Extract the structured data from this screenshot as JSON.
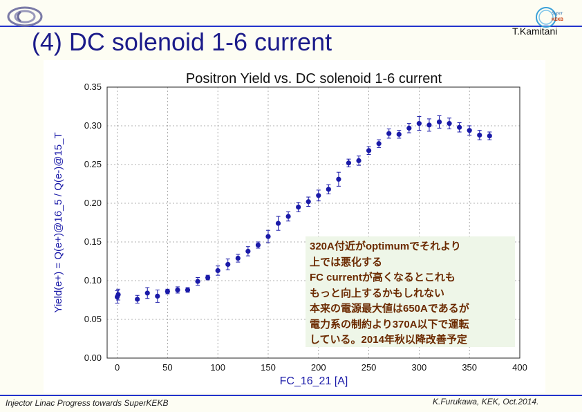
{
  "slide": {
    "title": "(4) DC solenoid 1-6 current",
    "author": "T.Kamitani",
    "footer_left": "Injector Linac Progress towards SuperKEKB",
    "footer_right": "K.Furukawa, KEK, Oct.2014.",
    "logo_right_text": [
      "Super",
      "KEKB"
    ]
  },
  "annotation": {
    "lines": [
      "320A付近がoptimumでそれより",
      "上では悪化する",
      "FC currentが高くなるとこれも",
      "もっと向上するかもしれない",
      "本来の電源最大値は650Aであるが",
      "電力系の制約より370A以下で運転",
      "している。2014年秋以降改善予定"
    ]
  },
  "chart_data": {
    "type": "scatter",
    "title": "Positron Yield vs. DC solenoid 1-6 current",
    "xlabel": "FC_16_21 [A]",
    "ylabel": "Yield(e+) = Q(e+)@16_5 / Q(e-)@15_T",
    "xlim": [
      -10,
      400
    ],
    "ylim": [
      0.0,
      0.35
    ],
    "xticks": [
      "0",
      "50",
      "100",
      "150",
      "200",
      "250",
      "300",
      "350",
      "400"
    ],
    "yticks": [
      "0.00",
      "0.05",
      "0.10",
      "0.15",
      "0.20",
      "0.25",
      "0.30",
      "0.35"
    ],
    "grid": true,
    "marker_color": "#1a1aa8",
    "series": [
      {
        "points": [
          {
            "x": 0,
            "y": 0.079,
            "err": 0.008
          },
          {
            "x": 1,
            "y": 0.082,
            "err": 0.007
          },
          {
            "x": 20,
            "y": 0.076,
            "err": 0.005
          },
          {
            "x": 30,
            "y": 0.084,
            "err": 0.007
          },
          {
            "x": 40,
            "y": 0.08,
            "err": 0.008
          },
          {
            "x": 50,
            "y": 0.086,
            "err": 0.003
          },
          {
            "x": 60,
            "y": 0.088,
            "err": 0.004
          },
          {
            "x": 70,
            "y": 0.088,
            "err": 0.003
          },
          {
            "x": 80,
            "y": 0.099,
            "err": 0.005
          },
          {
            "x": 90,
            "y": 0.104,
            "err": 0.003
          },
          {
            "x": 100,
            "y": 0.113,
            "err": 0.006
          },
          {
            "x": 110,
            "y": 0.121,
            "err": 0.007
          },
          {
            "x": 120,
            "y": 0.129,
            "err": 0.005
          },
          {
            "x": 130,
            "y": 0.138,
            "err": 0.006
          },
          {
            "x": 140,
            "y": 0.146,
            "err": 0.004
          },
          {
            "x": 150,
            "y": 0.157,
            "err": 0.008
          },
          {
            "x": 160,
            "y": 0.174,
            "err": 0.009
          },
          {
            "x": 170,
            "y": 0.183,
            "err": 0.006
          },
          {
            "x": 180,
            "y": 0.195,
            "err": 0.006
          },
          {
            "x": 190,
            "y": 0.202,
            "err": 0.006
          },
          {
            "x": 200,
            "y": 0.21,
            "err": 0.007
          },
          {
            "x": 210,
            "y": 0.218,
            "err": 0.006
          },
          {
            "x": 220,
            "y": 0.231,
            "err": 0.009
          },
          {
            "x": 230,
            "y": 0.252,
            "err": 0.005
          },
          {
            "x": 240,
            "y": 0.255,
            "err": 0.006
          },
          {
            "x": 250,
            "y": 0.268,
            "err": 0.005
          },
          {
            "x": 260,
            "y": 0.277,
            "err": 0.005
          },
          {
            "x": 270,
            "y": 0.29,
            "err": 0.006
          },
          {
            "x": 280,
            "y": 0.289,
            "err": 0.005
          },
          {
            "x": 290,
            "y": 0.297,
            "err": 0.006
          },
          {
            "x": 300,
            "y": 0.303,
            "err": 0.009
          },
          {
            "x": 310,
            "y": 0.301,
            "err": 0.008
          },
          {
            "x": 320,
            "y": 0.305,
            "err": 0.008
          },
          {
            "x": 330,
            "y": 0.303,
            "err": 0.007
          },
          {
            "x": 340,
            "y": 0.298,
            "err": 0.006
          },
          {
            "x": 350,
            "y": 0.294,
            "err": 0.006
          },
          {
            "x": 360,
            "y": 0.288,
            "err": 0.006
          },
          {
            "x": 370,
            "y": 0.287,
            "err": 0.005
          }
        ]
      }
    ]
  }
}
